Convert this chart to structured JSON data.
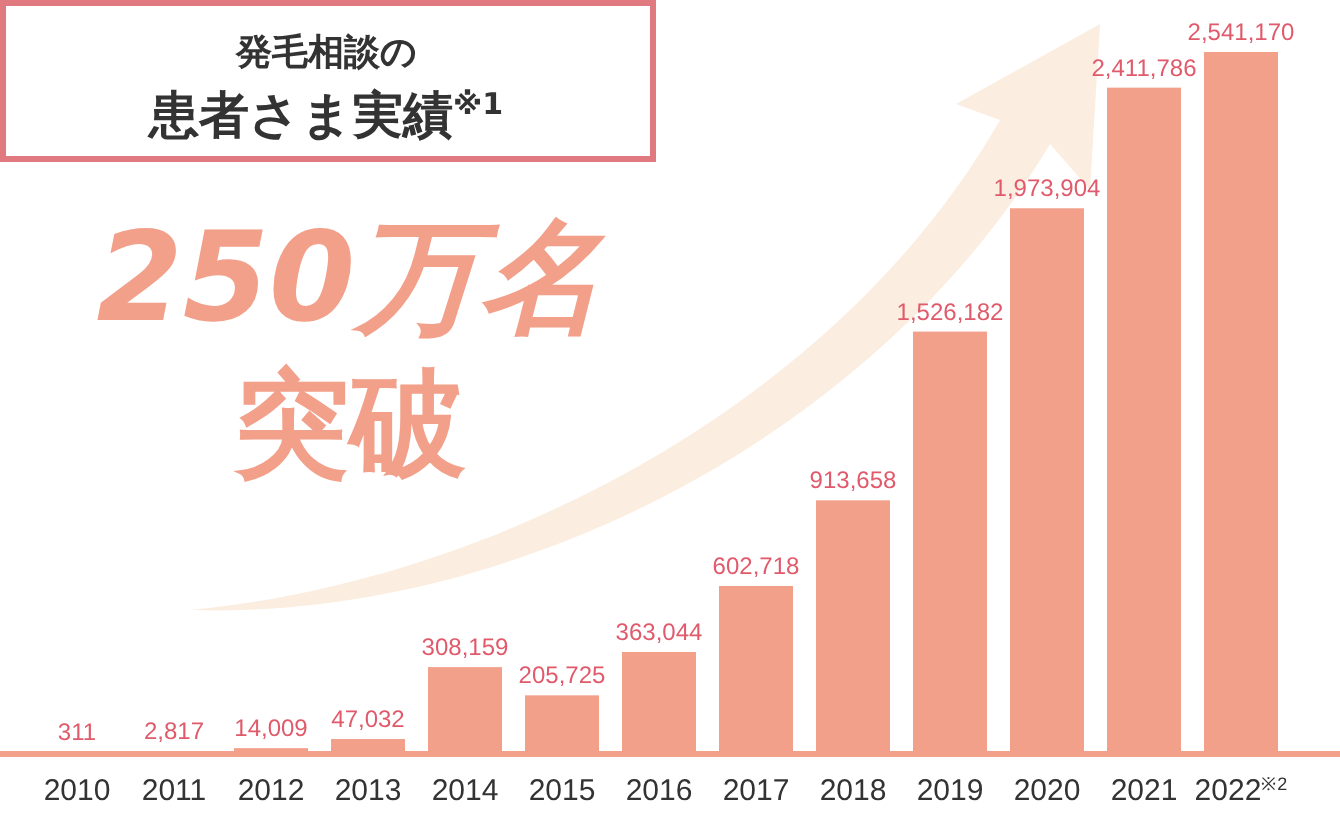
{
  "chart_data": {
    "type": "bar",
    "title": "発毛相談の",
    "subtitle": "患者さま実績$^{※1}$",
    "annotations": [
      "250万名突破"
    ],
    "categories": [
      "2010",
      "2011",
      "2012",
      "2013",
      "2014",
      "2015",
      "2016",
      "2017",
      "2018",
      "2019",
      "2020",
      "2021",
      "2022$^{※2}$"
    ],
    "values": [
      311,
      2817,
      14009,
      47032,
      308159,
      205725,
      363044,
      602718,
      913658,
      1526182,
      1973904,
      2411786,
      2541170
    ],
    "color": "#f2a08a",
    "value_labels": [
      "311",
      "2,817",
      "14,009",
      "47,032",
      "308,159",
      "205,725",
      "363,044",
      "602,718",
      "913,658",
      "1,526,182",
      "1,973,904",
      "2,411,786",
      "2,541,170"
    ]
  }
}
